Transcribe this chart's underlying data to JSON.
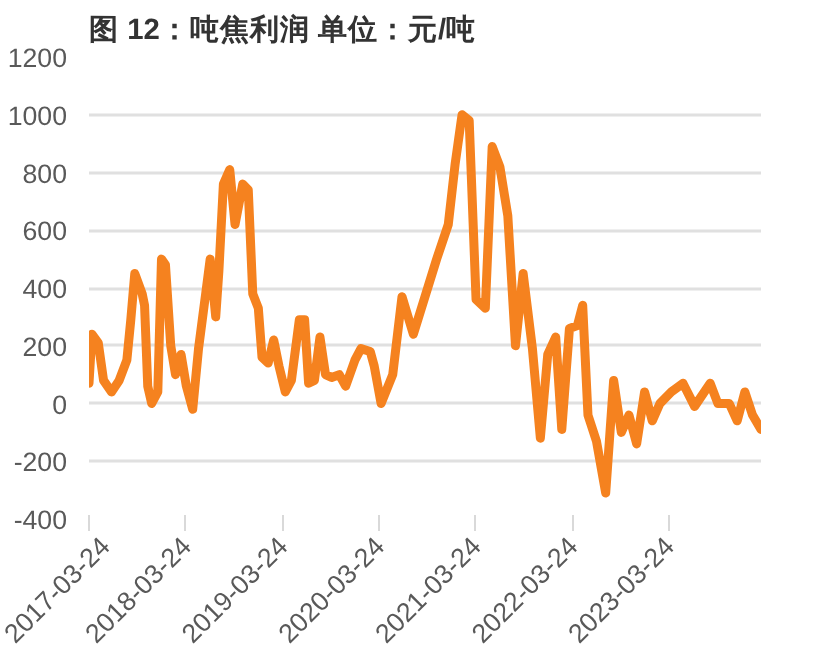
{
  "chart_data": {
    "type": "line",
    "title": "图 12：吨焦利润 单位：元/吨",
    "x": [
      "2017-03-24",
      "2017-04-04",
      "2017-04-28",
      "2017-05-18",
      "2017-06-17",
      "2017-07-16",
      "2017-08-14",
      "2017-08-29",
      "2017-09-13",
      "2017-10-11",
      "2017-10-20",
      "2017-11-01",
      "2017-11-16",
      "2017-12-09",
      "2017-12-23",
      "2018-01-07",
      "2018-01-27",
      "2018-02-14",
      "2018-03-07",
      "2018-03-27",
      "2018-04-20",
      "2018-05-12",
      "2018-06-08",
      "2018-06-25",
      "2018-07-16",
      "2018-07-28",
      "2018-08-14",
      "2018-09-07",
      "2018-09-27",
      "2018-10-26",
      "2018-11-16",
      "2018-12-03",
      "2018-12-24",
      "2019-01-07",
      "2019-01-30",
      "2019-02-20",
      "2019-03-12",
      "2019-04-05",
      "2019-04-28",
      "2019-05-28",
      "2019-06-17",
      "2019-07-02",
      "2019-07-24",
      "2019-08-14",
      "2019-09-04",
      "2019-09-27",
      "2019-10-26",
      "2019-11-19",
      "2019-12-24",
      "2020-01-16",
      "2020-02-20",
      "2020-03-06",
      "2020-04-01",
      "2020-05-15",
      "2020-06-19",
      "2020-08-01",
      "2020-09-14",
      "2020-10-28",
      "2020-12-11",
      "2021-01-06",
      "2021-02-01",
      "2021-02-28",
      "2021-03-26",
      "2021-04-30",
      "2021-05-26",
      "2021-06-24",
      "2021-07-24",
      "2021-08-22",
      "2021-09-20",
      "2021-10-25",
      "2021-11-24",
      "2021-12-22",
      "2022-01-21",
      "2022-02-13",
      "2022-03-14",
      "2022-04-13",
      "2022-05-03",
      "2022-05-23",
      "2022-06-24",
      "2022-07-29",
      "2022-08-28",
      "2022-09-26",
      "2022-10-25",
      "2022-11-23",
      "2022-12-23",
      "2023-01-21",
      "2023-02-19",
      "2023-04-03",
      "2023-05-17",
      "2023-06-30",
      "2023-08-28",
      "2023-09-26",
      "2023-11-08",
      "2023-12-08",
      "2024-01-06",
      "2024-02-04",
      "2024-03-07"
    ],
    "series": [
      {
        "color": "#f5821f",
        "values": [
          70,
          240,
          210,
          80,
          40,
          80,
          150,
          290,
          450,
          380,
          340,
          60,
          0,
          40,
          500,
          480,
          200,
          100,
          170,
          60,
          -20,
          190,
          380,
          500,
          300,
          460,
          760,
          810,
          620,
          760,
          740,
          380,
          330,
          160,
          140,
          220,
          130,
          40,
          80,
          290,
          290,
          70,
          80,
          230,
          100,
          90,
          100,
          60,
          150,
          190,
          180,
          130,
          0,
          100,
          370,
          240,
          370,
          500,
          620,
          830,
          1000,
          980,
          360,
          330,
          890,
          820,
          650,
          200,
          450,
          190,
          -120,
          170,
          230,
          -90,
          260,
          270,
          340,
          -40,
          -130,
          -310,
          80,
          -100,
          -40,
          -140,
          40,
          -60,
          0,
          40,
          70,
          -10,
          70,
          0,
          0,
          -60,
          40,
          -40,
          -90
        ]
      }
    ],
    "xlim": [
      "2017-03-24",
      "2024-03-07"
    ],
    "xticks": [
      "2017-03-24",
      "2018-03-24",
      "2019-03-24",
      "2020-03-24",
      "2021-03-24",
      "2022-03-24",
      "2023-03-24"
    ],
    "ylim": [
      -400,
      1200
    ],
    "yticks": [
      -400,
      -200,
      0,
      200,
      400,
      600,
      800,
      1000,
      1200
    ],
    "grid": "y",
    "marker": "none",
    "line_style": "solid"
  }
}
